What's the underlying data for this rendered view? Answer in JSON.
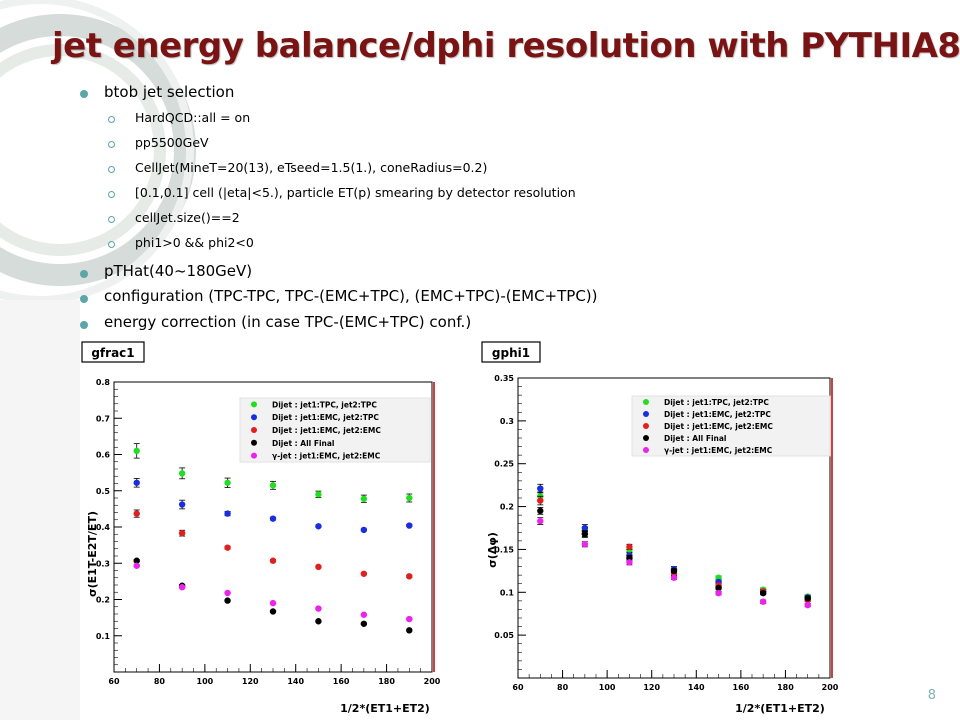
{
  "slide": {
    "title": "jet energy balance/dphi resolution with PYTHIA8",
    "page_number": "8",
    "accent_color": "#5aa6a9",
    "title_color": "#7a1414"
  },
  "bullets": [
    {
      "text": "btob jet selection",
      "level": 1
    },
    {
      "text": "HardQCD::all = on",
      "level": 2
    },
    {
      "text": "pp5500GeV",
      "level": 2
    },
    {
      "text": "CellJet(MineT=20(13), eTseed=1.5(1.), coneRadius=0.2)",
      "level": 2
    },
    {
      "text": "[0.1,0.1] cell (|eta|<5.), particle ET(p) smearing by detector resolution",
      "level": 2
    },
    {
      "text": "cellJet.size()==2",
      "level": 2
    },
    {
      "text": "phi1>0 && phi2<0",
      "level": 2
    },
    {
      "text": "pTHat(40~180GeV)",
      "level": 1
    },
    {
      "text": "configuration (TPC-TPC, TPC-(EMC+TPC), (EMC+TPC)-(EMC+TPC))",
      "level": 1
    },
    {
      "text": "energy correction (in case  TPC-(EMC+TPC) conf.)",
      "level": 1
    }
  ],
  "chart_data": [
    {
      "type": "scatter",
      "title": "gfrac1",
      "ylabel": "σ(E1T-E2T/ET)",
      "xlabel": "1/2*(ET1+ET2)",
      "xlim": [
        60,
        200
      ],
      "ylim": [
        0,
        0.8
      ],
      "x_ticks": [
        "60",
        "80",
        "100",
        "120",
        "140",
        "160",
        "180",
        "200"
      ],
      "y_ticks": [
        "0.1",
        "0.2",
        "0.3",
        "0.4",
        "0.5",
        "0.6",
        "0.7",
        "0.8"
      ],
      "x": [
        70,
        90,
        110,
        130,
        150,
        170,
        190
      ],
      "legend_position": "top-right",
      "series": [
        {
          "name": "Dijet : jet1:TPC, jet2:TPC",
          "color": "#22dd22",
          "values": [
            0.61,
            0.548,
            0.522,
            0.515,
            0.49,
            0.478,
            0.48
          ],
          "errors": [
            0.02,
            0.015,
            0.013,
            0.011,
            0.009,
            0.01,
            0.011
          ]
        },
        {
          "name": "Dijet : jet1:EMC, jet2:TPC",
          "color": "#1a2de0",
          "values": [
            0.522,
            0.462,
            0.437,
            0.423,
            0.402,
            0.392,
            0.404
          ],
          "errors": [
            0.012,
            0.012,
            0.006,
            0.004,
            0.003,
            0.003,
            0.003
          ]
        },
        {
          "name": "Dijet : jet1:EMC, jet2:EMC",
          "color": "#e02020",
          "values": [
            0.437,
            0.383,
            0.343,
            0.307,
            0.29,
            0.271,
            0.264
          ],
          "errors": [
            0.01,
            0.008,
            0.004,
            0.003,
            0.003,
            0.003,
            0.003
          ]
        },
        {
          "name": "Dijet : All Final",
          "color": "#000000",
          "values": [
            0.307,
            0.238,
            0.197,
            0.167,
            0.14,
            0.133,
            0.115
          ],
          "errors": [
            0.003,
            0.003,
            0.002,
            0.002,
            0.002,
            0.002,
            0.002
          ]
        },
        {
          "name": "γ-jet : jet1:EMC, jet2:EMC",
          "color": "#ee22ee",
          "values": [
            0.293,
            0.234,
            0.218,
            0.19,
            0.175,
            0.158,
            0.146
          ],
          "errors": [
            0.003,
            0.003,
            0.002,
            0.002,
            0.002,
            0.002,
            0.002
          ]
        }
      ]
    },
    {
      "type": "scatter",
      "title": "gphi1",
      "ylabel": "σ(Δφ)",
      "xlabel": "1/2*(ET1+ET2)",
      "xlim": [
        60,
        200
      ],
      "ylim": [
        0,
        0.35
      ],
      "x_ticks": [
        "60",
        "80",
        "100",
        "120",
        "140",
        "160",
        "180",
        "200"
      ],
      "y_ticks": [
        "0.05",
        "0.1",
        "0.15",
        "0.2",
        "0.25",
        "0.3",
        "0.35"
      ],
      "x": [
        70,
        90,
        110,
        130,
        150,
        170,
        190
      ],
      "legend_position": "top-right",
      "series": [
        {
          "name": "Dijet : jet1:TPC, jet2:TPC",
          "color": "#22dd22",
          "values": [
            0.212,
            0.172,
            0.15,
            0.125,
            0.117,
            0.103,
            0.095
          ],
          "errors": [
            0.005,
            0.004,
            0.003,
            0.003,
            0.002,
            0.002,
            0.002
          ]
        },
        {
          "name": "Dijet : jet1:EMC, jet2:TPC",
          "color": "#1a2de0",
          "values": [
            0.221,
            0.175,
            0.143,
            0.127,
            0.112,
            0.101,
            0.094
          ],
          "errors": [
            0.005,
            0.004,
            0.003,
            0.003,
            0.002,
            0.002,
            0.002
          ]
        },
        {
          "name": "Dijet : jet1:EMC, jet2:EMC",
          "color": "#e02020",
          "values": [
            0.207,
            0.168,
            0.153,
            0.122,
            0.108,
            0.101,
            0.091
          ],
          "errors": [
            0.005,
            0.004,
            0.003,
            0.002,
            0.002,
            0.002,
            0.002
          ]
        },
        {
          "name": "Dijet : All Final",
          "color": "#000000",
          "values": [
            0.195,
            0.168,
            0.14,
            0.125,
            0.105,
            0.099,
            0.093
          ],
          "errors": [
            0.004,
            0.003,
            0.003,
            0.002,
            0.002,
            0.002,
            0.002
          ]
        },
        {
          "name": "γ-jet : jet1:EMC, jet2:EMC",
          "color": "#ee22ee",
          "values": [
            0.183,
            0.156,
            0.135,
            0.117,
            0.099,
            0.089,
            0.085
          ],
          "errors": [
            0.004,
            0.003,
            0.003,
            0.002,
            0.002,
            0.002,
            0.002
          ]
        }
      ]
    }
  ]
}
